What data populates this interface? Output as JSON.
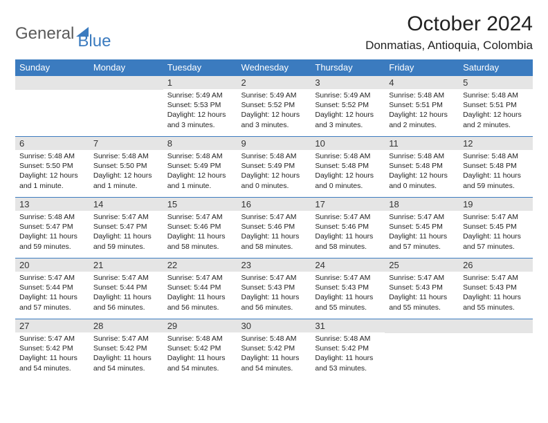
{
  "brand": {
    "part1": "General",
    "part2": "Blue"
  },
  "title": "October 2024",
  "location": "Donmatias, Antioquia, Colombia",
  "colors": {
    "header_bg": "#3b7bbf",
    "header_text": "#ffffff",
    "daynum_bg": "#e5e5e5",
    "border": "#3b7bbf",
    "logo_gray": "#5a5a5a",
    "logo_blue": "#3b7bbf"
  },
  "weekdays": [
    "Sunday",
    "Monday",
    "Tuesday",
    "Wednesday",
    "Thursday",
    "Friday",
    "Saturday"
  ],
  "first_weekday_index": 2,
  "days": [
    {
      "n": 1,
      "sunrise": "5:49 AM",
      "sunset": "5:53 PM",
      "daylight": "12 hours and 3 minutes."
    },
    {
      "n": 2,
      "sunrise": "5:49 AM",
      "sunset": "5:52 PM",
      "daylight": "12 hours and 3 minutes."
    },
    {
      "n": 3,
      "sunrise": "5:49 AM",
      "sunset": "5:52 PM",
      "daylight": "12 hours and 3 minutes."
    },
    {
      "n": 4,
      "sunrise": "5:48 AM",
      "sunset": "5:51 PM",
      "daylight": "12 hours and 2 minutes."
    },
    {
      "n": 5,
      "sunrise": "5:48 AM",
      "sunset": "5:51 PM",
      "daylight": "12 hours and 2 minutes."
    },
    {
      "n": 6,
      "sunrise": "5:48 AM",
      "sunset": "5:50 PM",
      "daylight": "12 hours and 1 minute."
    },
    {
      "n": 7,
      "sunrise": "5:48 AM",
      "sunset": "5:50 PM",
      "daylight": "12 hours and 1 minute."
    },
    {
      "n": 8,
      "sunrise": "5:48 AM",
      "sunset": "5:49 PM",
      "daylight": "12 hours and 1 minute."
    },
    {
      "n": 9,
      "sunrise": "5:48 AM",
      "sunset": "5:49 PM",
      "daylight": "12 hours and 0 minutes."
    },
    {
      "n": 10,
      "sunrise": "5:48 AM",
      "sunset": "5:48 PM",
      "daylight": "12 hours and 0 minutes."
    },
    {
      "n": 11,
      "sunrise": "5:48 AM",
      "sunset": "5:48 PM",
      "daylight": "12 hours and 0 minutes."
    },
    {
      "n": 12,
      "sunrise": "5:48 AM",
      "sunset": "5:48 PM",
      "daylight": "11 hours and 59 minutes."
    },
    {
      "n": 13,
      "sunrise": "5:48 AM",
      "sunset": "5:47 PM",
      "daylight": "11 hours and 59 minutes."
    },
    {
      "n": 14,
      "sunrise": "5:47 AM",
      "sunset": "5:47 PM",
      "daylight": "11 hours and 59 minutes."
    },
    {
      "n": 15,
      "sunrise": "5:47 AM",
      "sunset": "5:46 PM",
      "daylight": "11 hours and 58 minutes."
    },
    {
      "n": 16,
      "sunrise": "5:47 AM",
      "sunset": "5:46 PM",
      "daylight": "11 hours and 58 minutes."
    },
    {
      "n": 17,
      "sunrise": "5:47 AM",
      "sunset": "5:46 PM",
      "daylight": "11 hours and 58 minutes."
    },
    {
      "n": 18,
      "sunrise": "5:47 AM",
      "sunset": "5:45 PM",
      "daylight": "11 hours and 57 minutes."
    },
    {
      "n": 19,
      "sunrise": "5:47 AM",
      "sunset": "5:45 PM",
      "daylight": "11 hours and 57 minutes."
    },
    {
      "n": 20,
      "sunrise": "5:47 AM",
      "sunset": "5:44 PM",
      "daylight": "11 hours and 57 minutes."
    },
    {
      "n": 21,
      "sunrise": "5:47 AM",
      "sunset": "5:44 PM",
      "daylight": "11 hours and 56 minutes."
    },
    {
      "n": 22,
      "sunrise": "5:47 AM",
      "sunset": "5:44 PM",
      "daylight": "11 hours and 56 minutes."
    },
    {
      "n": 23,
      "sunrise": "5:47 AM",
      "sunset": "5:43 PM",
      "daylight": "11 hours and 56 minutes."
    },
    {
      "n": 24,
      "sunrise": "5:47 AM",
      "sunset": "5:43 PM",
      "daylight": "11 hours and 55 minutes."
    },
    {
      "n": 25,
      "sunrise": "5:47 AM",
      "sunset": "5:43 PM",
      "daylight": "11 hours and 55 minutes."
    },
    {
      "n": 26,
      "sunrise": "5:47 AM",
      "sunset": "5:43 PM",
      "daylight": "11 hours and 55 minutes."
    },
    {
      "n": 27,
      "sunrise": "5:47 AM",
      "sunset": "5:42 PM",
      "daylight": "11 hours and 54 minutes."
    },
    {
      "n": 28,
      "sunrise": "5:47 AM",
      "sunset": "5:42 PM",
      "daylight": "11 hours and 54 minutes."
    },
    {
      "n": 29,
      "sunrise": "5:48 AM",
      "sunset": "5:42 PM",
      "daylight": "11 hours and 54 minutes."
    },
    {
      "n": 30,
      "sunrise": "5:48 AM",
      "sunset": "5:42 PM",
      "daylight": "11 hours and 54 minutes."
    },
    {
      "n": 31,
      "sunrise": "5:48 AM",
      "sunset": "5:42 PM",
      "daylight": "11 hours and 53 minutes."
    }
  ],
  "labels": {
    "sunrise": "Sunrise:",
    "sunset": "Sunset:",
    "daylight": "Daylight:"
  }
}
